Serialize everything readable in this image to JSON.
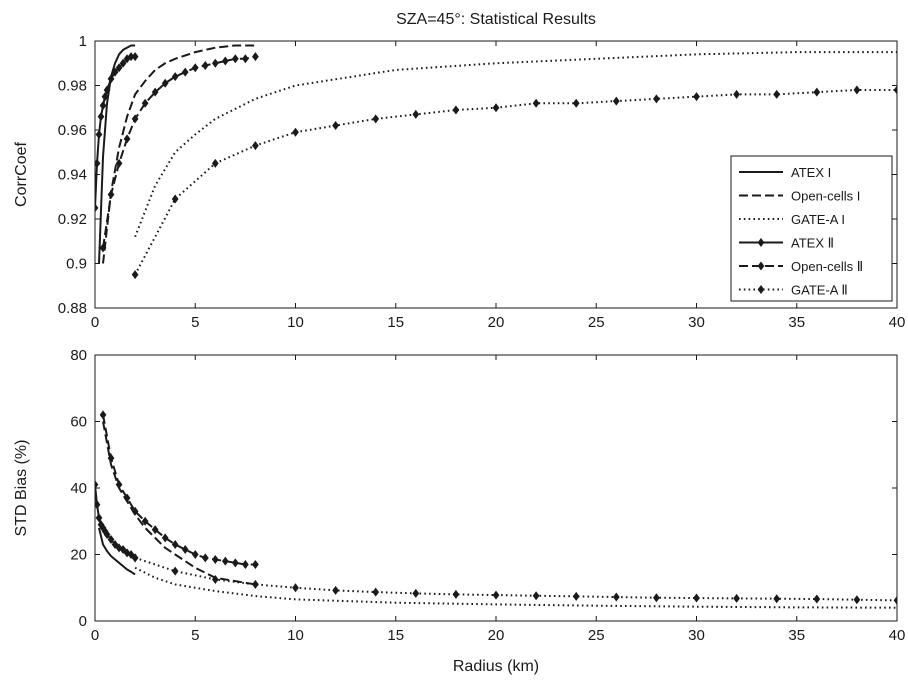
{
  "figure": {
    "title": "SZA=45°: Statistical Results"
  },
  "chart_data": [
    {
      "type": "line",
      "ylabel": "CorrCoef",
      "xlabel": "",
      "xlim": [
        0,
        40
      ],
      "ylim": [
        0.88,
        1.0
      ],
      "xticks": [
        0,
        5,
        10,
        15,
        20,
        25,
        30,
        35,
        40
      ],
      "yticks": [
        0.88,
        0.9,
        0.92,
        0.94,
        0.96,
        0.98,
        1.0
      ],
      "ytick_labels": [
        "0.88",
        "0.9",
        "0.92",
        "0.94",
        "0.96",
        "0.98",
        "1"
      ],
      "grid": false,
      "legend_position": "lower-right",
      "series": [
        {
          "name": "ATEX I",
          "style": "solid",
          "marker": false,
          "x": [
            0.2,
            0.4,
            0.6,
            0.8,
            1.0,
            1.2,
            1.4,
            1.6,
            1.8,
            2.0
          ],
          "y": [
            0.9,
            0.948,
            0.972,
            0.984,
            0.99,
            0.994,
            0.996,
            0.997,
            0.998,
            0.998
          ]
        },
        {
          "name": "Open-cells I",
          "style": "dashed",
          "marker": false,
          "x": [
            0.4,
            0.8,
            1.2,
            1.6,
            2.0,
            2.5,
            3.0,
            3.5,
            4.0,
            5.0,
            6.0,
            7.0,
            8.0
          ],
          "y": [
            0.9,
            0.932,
            0.952,
            0.966,
            0.976,
            0.982,
            0.987,
            0.99,
            0.992,
            0.995,
            0.997,
            0.998,
            0.998
          ]
        },
        {
          "name": "GATE-A I",
          "style": "dotted",
          "marker": false,
          "x": [
            2,
            3,
            4,
            5,
            6,
            8,
            10,
            15,
            20,
            25,
            30,
            35,
            40
          ],
          "y": [
            0.912,
            0.935,
            0.95,
            0.958,
            0.965,
            0.974,
            0.98,
            0.987,
            0.99,
            0.992,
            0.994,
            0.995,
            0.995
          ]
        },
        {
          "name": "ATEX Ⅱ",
          "style": "solid",
          "marker": true,
          "x": [
            0.0,
            0.1,
            0.2,
            0.3,
            0.4,
            0.5,
            0.6,
            0.8,
            1.0,
            1.2,
            1.4,
            1.6,
            1.8,
            2.0
          ],
          "y": [
            0.925,
            0.945,
            0.958,
            0.966,
            0.971,
            0.975,
            0.978,
            0.983,
            0.986,
            0.988,
            0.99,
            0.992,
            0.993,
            0.993
          ]
        },
        {
          "name": "Open-cells Ⅱ",
          "style": "dashed",
          "marker": true,
          "x": [
            0.4,
            0.8,
            1.2,
            1.6,
            2.0,
            2.5,
            3.0,
            3.5,
            4.0,
            4.5,
            5.0,
            5.5,
            6.0,
            6.5,
            7.0,
            7.5,
            8.0
          ],
          "y": [
            0.907,
            0.931,
            0.945,
            0.956,
            0.965,
            0.972,
            0.977,
            0.981,
            0.984,
            0.986,
            0.988,
            0.989,
            0.99,
            0.991,
            0.992,
            0.992,
            0.993
          ]
        },
        {
          "name": "GATE-A Ⅱ",
          "style": "dotted",
          "marker": true,
          "x": [
            2,
            4,
            6,
            8,
            10,
            12,
            14,
            16,
            18,
            20,
            22,
            24,
            26,
            28,
            30,
            32,
            34,
            36,
            38,
            40
          ],
          "y": [
            0.895,
            0.929,
            0.945,
            0.953,
            0.959,
            0.962,
            0.965,
            0.967,
            0.969,
            0.97,
            0.972,
            0.972,
            0.973,
            0.974,
            0.975,
            0.976,
            0.976,
            0.977,
            0.978,
            0.978
          ]
        }
      ]
    },
    {
      "type": "line",
      "ylabel": "STD Bias (%)",
      "xlabel": "Radius (km)",
      "xlim": [
        0,
        40
      ],
      "ylim": [
        0,
        80
      ],
      "xticks": [
        0,
        5,
        10,
        15,
        20,
        25,
        30,
        35,
        40
      ],
      "yticks": [
        0,
        20,
        40,
        60,
        80
      ],
      "ytick_labels": [
        "0",
        "20",
        "40",
        "60",
        "80"
      ],
      "grid": false,
      "series": [
        {
          "name": "ATEX I",
          "style": "solid",
          "marker": false,
          "x": [
            0.2,
            0.4,
            0.6,
            0.8,
            1.0,
            1.2,
            1.4,
            1.6,
            1.8,
            2.0
          ],
          "y": [
            28,
            23,
            21,
            19.5,
            18.5,
            17.5,
            16.5,
            15.5,
            14.8,
            14
          ]
        },
        {
          "name": "Open-cells I",
          "style": "dashed",
          "marker": false,
          "x": [
            0.4,
            0.8,
            1.2,
            1.6,
            2.0,
            2.5,
            3.0,
            3.5,
            4.0,
            5.0,
            6.0,
            7.0,
            8.0
          ],
          "y": [
            60,
            47,
            40,
            36,
            32,
            28,
            25,
            22,
            20,
            16,
            13,
            12,
            11
          ]
        },
        {
          "name": "GATE-A I",
          "style": "dotted",
          "marker": false,
          "x": [
            2,
            3,
            4,
            5,
            6,
            8,
            10,
            15,
            20,
            25,
            30,
            35,
            40
          ],
          "y": [
            16,
            13,
            11,
            10,
            9,
            7.5,
            6.5,
            5.5,
            5,
            4.6,
            4.3,
            4.1,
            4
          ]
        },
        {
          "name": "ATEX Ⅱ",
          "style": "solid",
          "marker": true,
          "x": [
            0.0,
            0.1,
            0.2,
            0.3,
            0.4,
            0.5,
            0.6,
            0.8,
            1.0,
            1.2,
            1.4,
            1.6,
            1.8,
            2.0
          ],
          "y": [
            41,
            35,
            31,
            29,
            28,
            27,
            26,
            24.5,
            23,
            22,
            21.5,
            20.5,
            20,
            19
          ]
        },
        {
          "name": "Open-cells Ⅱ",
          "style": "dashed",
          "marker": true,
          "x": [
            0.4,
            0.8,
            1.2,
            1.6,
            2.0,
            2.5,
            3.0,
            3.5,
            4.0,
            4.5,
            5.0,
            5.5,
            6.0,
            6.5,
            7.0,
            7.5,
            8.0
          ],
          "y": [
            62,
            49,
            41,
            37,
            33,
            30,
            27.5,
            25,
            23,
            21.5,
            20,
            19,
            18.5,
            18,
            17.5,
            17,
            17
          ]
        },
        {
          "name": "GATE-A Ⅱ",
          "style": "dotted",
          "marker": true,
          "x": [
            2,
            4,
            6,
            8,
            10,
            12,
            14,
            16,
            18,
            20,
            22,
            24,
            26,
            28,
            30,
            32,
            34,
            36,
            38,
            40
          ],
          "y": [
            19,
            15,
            12.5,
            11,
            10,
            9.2,
            8.7,
            8.3,
            8,
            7.8,
            7.6,
            7.4,
            7.2,
            7.0,
            6.9,
            6.8,
            6.7,
            6.6,
            6.4,
            6.2
          ]
        }
      ]
    }
  ]
}
